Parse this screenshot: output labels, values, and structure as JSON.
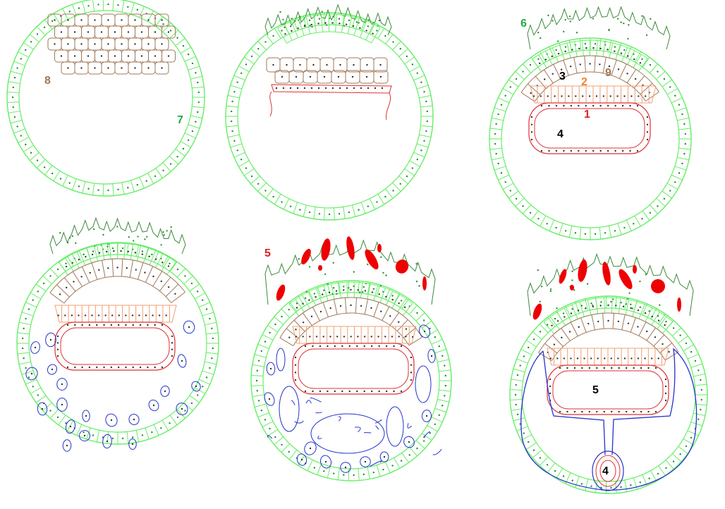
{
  "labels": {
    "l8": "8",
    "l7": "7",
    "l6": "6",
    "l3": "3",
    "l2": "2",
    "l9": "9",
    "l1": "1",
    "l4a": "4",
    "l5a": "5",
    "l5b": "5",
    "l4b": "4"
  },
  "colors": {
    "trophoblast": "#66ee66",
    "embryoblast": "#a0785a",
    "hypoblast": "#e03030",
    "epiblast": "#f0a070",
    "syncytio": "#3a8a3a",
    "mesoderm": "#2233cc",
    "lacunae": "#ee0000",
    "label_green": "#22aa44",
    "label_brown": "#a0785a",
    "label_red": "#e02020",
    "label_orange": "#f08030",
    "label_black": "#000000"
  }
}
